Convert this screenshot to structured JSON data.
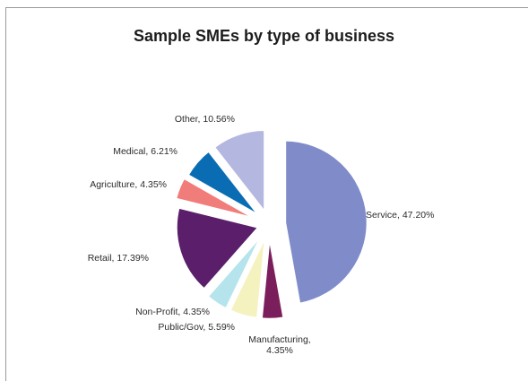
{
  "chart_data": {
    "type": "pie",
    "title": "Sample SMEs by type of business",
    "slices": [
      {
        "name": "Service",
        "label": "Service, 47.20%",
        "value": 47.2,
        "color": "#7f8cc9"
      },
      {
        "name": "Manufacturing",
        "label": "Manufacturing,",
        "label2": "4.35%",
        "value": 4.35,
        "color": "#7a1f5b"
      },
      {
        "name": "Public/Gov",
        "label": "Public/Gov, 5.59%",
        "value": 5.59,
        "color": "#f4f2bf"
      },
      {
        "name": "Non-Profit",
        "label": "Non-Profit, 4.35%",
        "value": 4.35,
        "color": "#b6e4ec"
      },
      {
        "name": "Retail",
        "label": "Retail, 17.39%",
        "value": 17.39,
        "color": "#5a1e6b"
      },
      {
        "name": "Agriculture",
        "label": "Agriculture, 4.35%",
        "value": 4.35,
        "color": "#f07d7a"
      },
      {
        "name": "Medical",
        "label": "Medical, 6.21%",
        "value": 6.21,
        "color": "#0a6db3"
      },
      {
        "name": "Other",
        "label": "Other, 10.56%",
        "value": 10.56,
        "color": "#b4b8e0"
      }
    ]
  }
}
